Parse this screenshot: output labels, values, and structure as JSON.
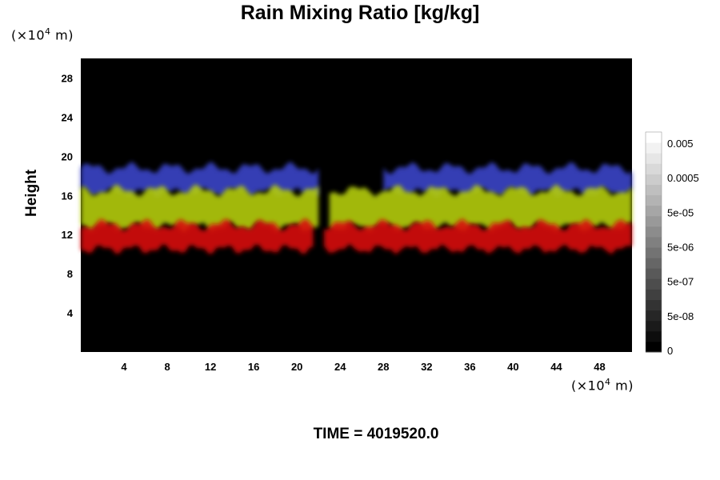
{
  "title": "Rain Mixing Ratio [kg/kg]",
  "y_unit_prefix": "(×10",
  "y_unit_exp": "4",
  "y_unit_suffix": " m)",
  "x_unit_prefix": "(×10",
  "x_unit_exp": "4",
  "x_unit_suffix": " m)",
  "ylabel": "Height",
  "time_label": "TIME = 4019520.0",
  "chart_data": {
    "type": "heatmap",
    "title": "Rain Mixing Ratio [kg/kg]",
    "xlabel": "",
    "ylabel": "Height",
    "xlim": [
      0,
      51
    ],
    "ylim": [
      0,
      30
    ],
    "x_ticks": [
      4,
      8,
      12,
      16,
      20,
      24,
      28,
      32,
      36,
      40,
      44,
      48
    ],
    "y_ticks": [
      4,
      8,
      12,
      16,
      20,
      24,
      28
    ],
    "background": "#000000",
    "colorbar": {
      "labels": [
        "0.005",
        "0.0005",
        "5e-05",
        "5e-06",
        "5e-07",
        "5e-08",
        "0"
      ],
      "bands": 21,
      "colors": [
        "#000000",
        "#ffffff"
      ]
    },
    "layers": [
      {
        "color": "#3a45c8",
        "height_range": [
          16.3,
          18.8
        ],
        "gap": [
          22,
          28
        ]
      },
      {
        "color": "#b4cc10",
        "height_range": [
          12.8,
          16.5
        ],
        "gap": [
          22,
          23
        ]
      },
      {
        "color": "#d80c08",
        "height_range": [
          10.5,
          13.0
        ],
        "gap": [
          21.5,
          22.5
        ]
      }
    ]
  }
}
